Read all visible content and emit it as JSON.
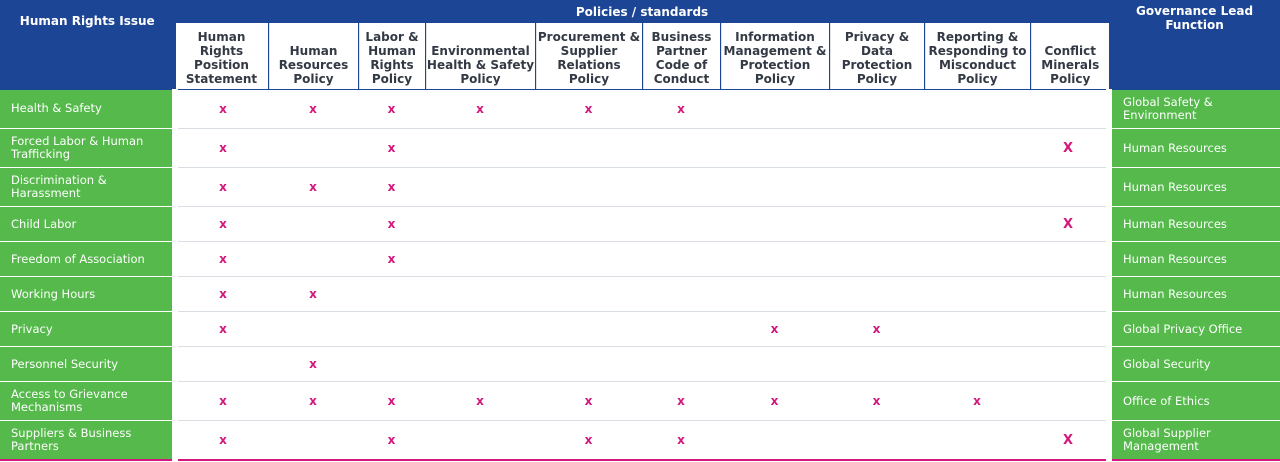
{
  "header": {
    "issue_label": "Human Rights Issue",
    "group_label": "Policies / standards",
    "lead_label": "Governance Lead Function"
  },
  "columns": [
    "Human Rights Position Statement",
    "Human Resources Policy",
    "Labor & Human Rights Policy",
    "Environmental Health & Safety Policy",
    "Procurement & Supplier Relations Policy",
    "Business Partner Code of Conduct",
    "Information Management & Protection Policy",
    "Privacy & Data Protection Policy",
    "Reporting & Responding to Misconduct Policy",
    "Conflict Minerals Policy"
  ],
  "rows": [
    {
      "issue": "Health & Safety",
      "lead": "Global Safety & Environment",
      "marks": [
        "x",
        "x",
        "x",
        "x",
        "x",
        "x",
        "",
        "",
        "",
        ""
      ]
    },
    {
      "issue": "Forced Labor & Human Trafficking",
      "lead": "Human Resources",
      "marks": [
        "x",
        "",
        "x",
        "",
        "",
        "",
        "",
        "",
        "",
        "X"
      ]
    },
    {
      "issue": "Discrimination & Harassment",
      "lead": "Human Resources",
      "marks": [
        "x",
        "x",
        "x",
        "",
        "",
        "",
        "",
        "",
        "",
        ""
      ]
    },
    {
      "issue": "Child Labor",
      "lead": "Human Resources",
      "marks": [
        "x",
        "",
        "x",
        "",
        "",
        "",
        "",
        "",
        "",
        "X"
      ]
    },
    {
      "issue": "Freedom of Association",
      "lead": "Human Resources",
      "marks": [
        "x",
        "",
        "x",
        "",
        "",
        "",
        "",
        "",
        "",
        ""
      ]
    },
    {
      "issue": "Working Hours",
      "lead": "Human Resources",
      "marks": [
        "x",
        "x",
        "",
        "",
        "",
        "",
        "",
        "",
        "",
        ""
      ]
    },
    {
      "issue": "Privacy",
      "lead": "Global Privacy Office",
      "marks": [
        "x",
        "",
        "",
        "",
        "",
        "",
        "x",
        "x",
        "",
        ""
      ]
    },
    {
      "issue": "Personnel Security",
      "lead": "Global Security",
      "marks": [
        "",
        "x",
        "",
        "",
        "",
        "",
        "",
        "",
        "",
        ""
      ]
    },
    {
      "issue": "Access to Grievance Mechanisms",
      "lead": "Office of Ethics",
      "marks": [
        "x",
        "x",
        "x",
        "x",
        "x",
        "x",
        "x",
        "x",
        "x",
        ""
      ]
    },
    {
      "issue": "Suppliers & Business Partners",
      "lead": "Global Supplier Management",
      "marks": [
        "x",
        "",
        "x",
        "",
        "x",
        "x",
        "",
        "",
        "",
        "X"
      ]
    }
  ],
  "colors": {
    "header": "#1d4596",
    "row_accent": "#55b94b",
    "mark": "#d4177d"
  }
}
